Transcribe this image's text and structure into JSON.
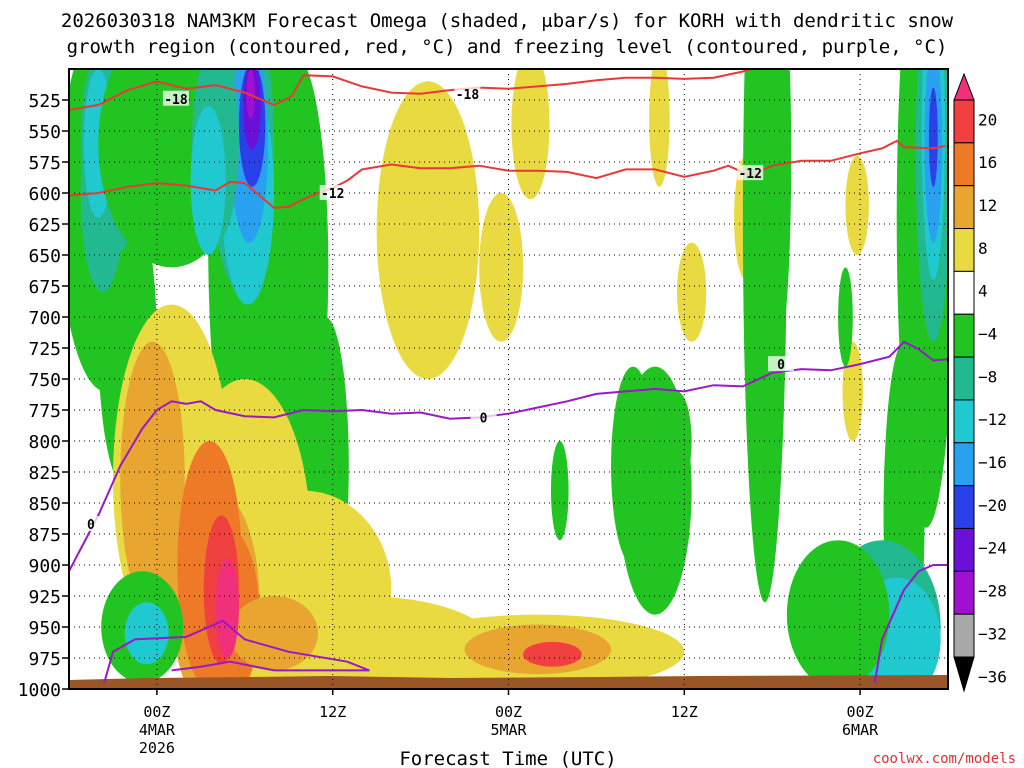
{
  "chart_data": {
    "type": "heatmap",
    "title_line1": "2026030318 NAM3KM Forecast Omega (shaded, μbar/s) for KORH with dendritic snow",
    "title_line2": "growth region (contoured, red, °C) and freezing level (contoured, purple, °C)",
    "xlabel": "Forecast Time (UTC)",
    "x_ticks": [
      {
        "hour": 6,
        "label": "00Z",
        "date": "4MAR",
        "year": "2026"
      },
      {
        "hour": 18,
        "label": "12Z",
        "date": "",
        "year": ""
      },
      {
        "hour": 30,
        "label": "00Z",
        "date": "5MAR",
        "year": ""
      },
      {
        "hour": 42,
        "label": "12Z",
        "date": "",
        "year": ""
      },
      {
        "hour": 54,
        "label": "00Z",
        "date": "6MAR",
        "year": ""
      }
    ],
    "x_range_hours": [
      0,
      60
    ],
    "y_pressure_levels": [
      "525",
      "550",
      "575",
      "600",
      "625",
      "650",
      "675",
      "700",
      "725",
      "750",
      "775",
      "800",
      "825",
      "850",
      "875",
      "900",
      "925",
      "950",
      "975",
      "1000"
    ],
    "y_range_hpa": [
      500,
      1000
    ],
    "colorbar": {
      "labels": [
        "20",
        "16",
        "12",
        "8",
        "4",
        "−4",
        "−8",
        "−12",
        "−16",
        "−20",
        "−24",
        "−28",
        "−32",
        "−36"
      ],
      "colors": [
        "#f0307a",
        "#f04040",
        "#ee7a28",
        "#e8a630",
        "#e8da40",
        "#ffffff",
        "#22c422",
        "#22b890",
        "#20c8d0",
        "#2aa0f0",
        "#2a40e8",
        "#6a10d8",
        "#a010d0",
        "#a8a8a8",
        "#000000"
      ]
    },
    "contour_labels": {
      "red": [
        {
          "text": "-18",
          "hour": 7.3,
          "p": 524
        },
        {
          "text": "-18",
          "hour": 27.2,
          "p": 520
        },
        {
          "text": "-12",
          "hour": 18,
          "p": 600
        },
        {
          "text": "-12",
          "hour": 46.5,
          "p": 584
        }
      ],
      "purple": [
        {
          "text": "0",
          "hour": 1.5,
          "p": 867
        },
        {
          "text": "0",
          "hour": 28.3,
          "p": 781
        },
        {
          "text": "0",
          "hour": 48.6,
          "p": 738
        }
      ]
    },
    "dendritic_minus18_contour": [
      [
        0,
        533
      ],
      [
        2,
        529
      ],
      [
        4,
        517
      ],
      [
        6,
        510
      ],
      [
        8,
        516
      ],
      [
        10,
        513
      ],
      [
        12,
        519
      ],
      [
        14,
        529
      ],
      [
        15.2,
        522
      ],
      [
        16,
        505
      ],
      [
        18,
        506
      ],
      [
        20,
        514
      ],
      [
        22,
        519
      ],
      [
        24,
        520
      ],
      [
        26,
        517
      ],
      [
        28,
        515
      ],
      [
        30,
        516
      ],
      [
        32,
        514
      ],
      [
        34,
        512
      ],
      [
        36,
        509
      ],
      [
        38,
        507
      ],
      [
        40,
        507
      ],
      [
        42,
        508
      ],
      [
        44,
        507
      ],
      [
        46,
        502
      ],
      [
        46.5,
        500
      ]
    ],
    "dendritic_minus12_contour": [
      [
        0,
        602
      ],
      [
        2,
        600
      ],
      [
        4,
        595
      ],
      [
        6,
        592
      ],
      [
        8,
        594
      ],
      [
        10,
        598
      ],
      [
        11,
        591
      ],
      [
        12,
        592
      ],
      [
        14,
        612
      ],
      [
        15,
        611
      ],
      [
        16,
        605
      ],
      [
        17,
        600
      ],
      [
        18,
        596
      ],
      [
        19,
        590
      ],
      [
        20,
        581
      ],
      [
        22,
        577
      ],
      [
        24,
        580
      ],
      [
        26,
        580
      ],
      [
        28,
        578
      ],
      [
        30,
        582
      ],
      [
        32,
        582
      ],
      [
        34,
        583
      ],
      [
        36,
        588
      ],
      [
        38,
        581
      ],
      [
        40,
        581
      ],
      [
        42,
        587
      ],
      [
        44,
        582
      ],
      [
        45,
        578
      ],
      [
        46.5,
        586
      ],
      [
        48,
        578
      ],
      [
        50,
        574
      ],
      [
        52,
        574
      ],
      [
        54,
        568
      ],
      [
        55.5,
        564
      ],
      [
        56.5,
        558
      ],
      [
        57,
        563
      ],
      [
        59,
        564
      ],
      [
        59.8,
        562
      ]
    ],
    "freezing_level_contour": [
      [
        0,
        905
      ],
      [
        2,
        860
      ],
      [
        3.5,
        820
      ],
      [
        5,
        790
      ],
      [
        6,
        775
      ],
      [
        7,
        768
      ],
      [
        8,
        770
      ],
      [
        9,
        768
      ],
      [
        10,
        775
      ],
      [
        12,
        780
      ],
      [
        14,
        781
      ],
      [
        16,
        775
      ],
      [
        18,
        776
      ],
      [
        20,
        775
      ],
      [
        22,
        778
      ],
      [
        24,
        777
      ],
      [
        26,
        782
      ],
      [
        28,
        781
      ],
      [
        30,
        778
      ],
      [
        32,
        773
      ],
      [
        34,
        768
      ],
      [
        36,
        762
      ],
      [
        38,
        760
      ],
      [
        40,
        758
      ],
      [
        42,
        760
      ],
      [
        44,
        755
      ],
      [
        46,
        756
      ],
      [
        48,
        745
      ],
      [
        50,
        742
      ],
      [
        52,
        743
      ],
      [
        54,
        738
      ],
      [
        56,
        732
      ],
      [
        57,
        720
      ],
      [
        58,
        726
      ],
      [
        59,
        735
      ],
      [
        60,
        734
      ]
    ],
    "brand": "coolwx.com/models"
  }
}
